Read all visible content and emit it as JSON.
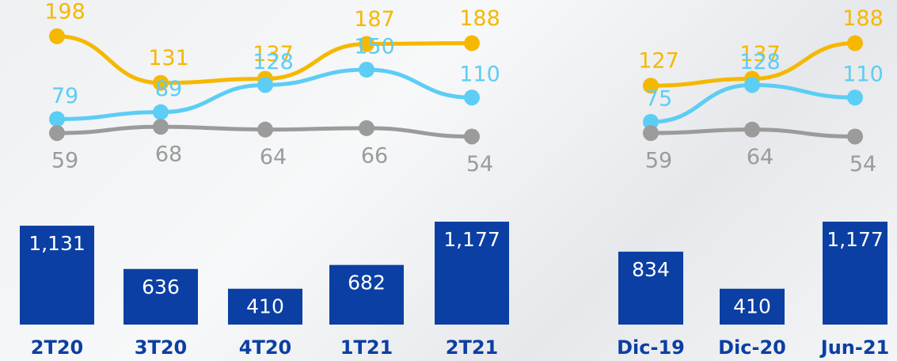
{
  "chart_data": [
    {
      "type": "combo",
      "categories": [
        "2T20",
        "3T20",
        "4T20",
        "1T21",
        "2T21"
      ],
      "series": [
        {
          "type": "line",
          "color": "#f5b800",
          "values": [
            198,
            131,
            137,
            187,
            188
          ]
        },
        {
          "type": "line",
          "color": "#5ccdf5",
          "values": [
            79,
            89,
            128,
            150,
            110
          ]
        },
        {
          "type": "line",
          "color": "#9b9b9b",
          "values": [
            59,
            68,
            64,
            66,
            54
          ]
        },
        {
          "type": "bar",
          "color": "#0b3fa3",
          "values": [
            1131,
            636,
            410,
            682,
            1177
          ],
          "value_labels": [
            "1,131",
            "636",
            "410",
            "682",
            "1,177"
          ]
        }
      ]
    },
    {
      "type": "combo",
      "categories": [
        "Dic-19",
        "Dic-20",
        "Jun-21"
      ],
      "series": [
        {
          "type": "line",
          "color": "#f5b800",
          "values": [
            127,
            137,
            188
          ]
        },
        {
          "type": "line",
          "color": "#5ccdf5",
          "values": [
            75,
            128,
            110
          ]
        },
        {
          "type": "line",
          "color": "#9b9b9b",
          "values": [
            59,
            64,
            54
          ]
        },
        {
          "type": "bar",
          "color": "#0b3fa3",
          "values": [
            834,
            410,
            1177
          ],
          "value_labels": [
            "834",
            "410",
            "1,177"
          ]
        }
      ]
    }
  ]
}
